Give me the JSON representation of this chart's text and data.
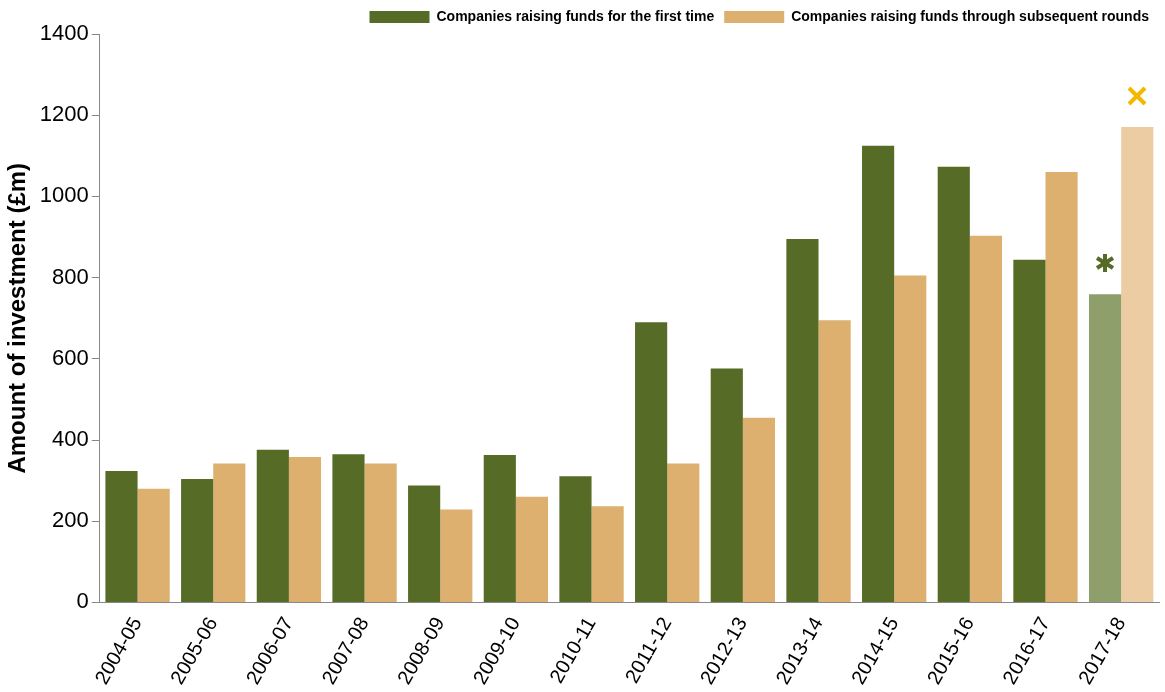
{
  "chart_data": {
    "type": "bar",
    "ylabel": "Amount of investment (£m)",
    "categories": [
      "2004-05",
      "2005-06",
      "2006-07",
      "2007-08",
      "2008-09",
      "2009-10",
      "2010-11",
      "2011-12",
      "2012-13",
      "2013-14",
      "2014-15",
      "2015-16",
      "2016-17",
      "2017-18"
    ],
    "series": [
      {
        "name": "Companies raising funds for the first time",
        "color": "#566b26",
        "colors": [
          "#566b26",
          "#566b26",
          "#566b26",
          "#566b26",
          "#566b26",
          "#566b26",
          "#566b26",
          "#566b26",
          "#566b26",
          "#566b26",
          "#566b26",
          "#566b26",
          "#566b26",
          "#8f9f6c"
        ],
        "values": [
          324,
          304,
          376,
          365,
          288,
          363,
          311,
          690,
          576,
          895,
          1125,
          1073,
          844,
          759
        ]
      },
      {
        "name": "Companies raising funds through subsequent rounds",
        "color": "#ddb06f",
        "colors": [
          "#ddb06f",
          "#ddb06f",
          "#ddb06f",
          "#ddb06f",
          "#ddb06f",
          "#ddb06f",
          "#ddb06f",
          "#ddb06f",
          "#ddb06f",
          "#ddb06f",
          "#ddb06f",
          "#ddb06f",
          "#ddb06f",
          "#eccda3"
        ],
        "values": [
          280,
          342,
          358,
          342,
          229,
          260,
          237,
          342,
          455,
          695,
          805,
          903,
          1060,
          1171
        ]
      }
    ],
    "ylim": [
      0,
      1400
    ],
    "yticks": [
      0,
      200,
      400,
      600,
      800,
      1000,
      1200,
      1400
    ],
    "grid": false,
    "legend": "top right"
  }
}
